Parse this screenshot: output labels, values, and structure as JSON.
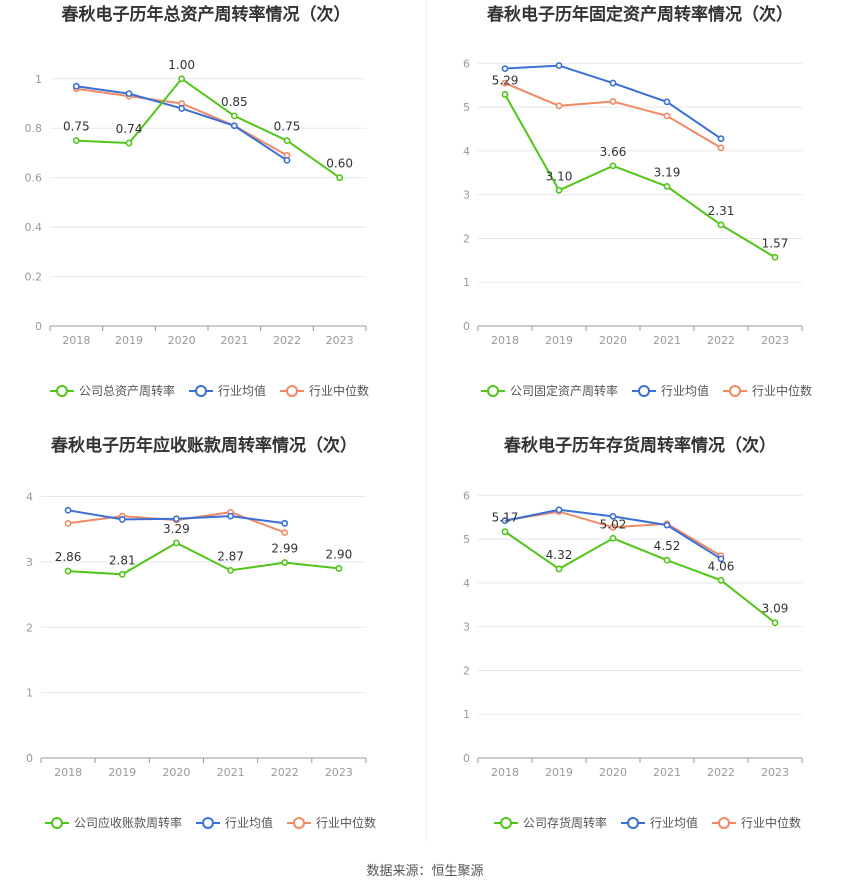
{
  "colors": {
    "company": "#52c41a",
    "avg": "#3a6fd8",
    "median": "#f08a65",
    "grid": "#e8e8ee",
    "axis": "#999999"
  },
  "footer": {
    "source": "数据来源：恒生聚源"
  },
  "chart_data": [
    {
      "type": "line",
      "title": "春秋电子历年总资产周转率情况（次）",
      "categories": [
        "2018",
        "2019",
        "2020",
        "2021",
        "2022",
        "2023"
      ],
      "y_ticks": [
        "0",
        "0.2",
        "0.4",
        "0.6",
        "0.8",
        "1"
      ],
      "ylim": [
        0,
        1.08
      ],
      "series": [
        {
          "name": "公司总资产周转率",
          "key": "company",
          "values": [
            0.75,
            0.74,
            1.0,
            0.85,
            0.75,
            0.6
          ],
          "labels": [
            "0.75",
            "0.74",
            "1.00",
            "0.85",
            "0.75",
            "0.60"
          ]
        },
        {
          "name": "行业均值",
          "key": "avg",
          "values": [
            0.97,
            0.94,
            0.88,
            0.81,
            0.67,
            null
          ]
        },
        {
          "name": "行业中位数",
          "key": "median",
          "values": [
            0.96,
            0.93,
            0.9,
            0.81,
            0.69,
            null
          ]
        }
      ]
    },
    {
      "type": "line",
      "title": "春秋电子历年固定资产周转率情况（次）",
      "categories": [
        "2018",
        "2019",
        "2020",
        "2021",
        "2022",
        "2023"
      ],
      "y_ticks": [
        "0",
        "1",
        "2",
        "3",
        "4",
        "5",
        "6"
      ],
      "ylim": [
        0,
        6.1
      ],
      "series": [
        {
          "name": "公司固定资产周转率",
          "key": "company",
          "values": [
            5.29,
            3.1,
            3.66,
            3.19,
            2.31,
            1.57
          ],
          "labels": [
            "5.29",
            "3.10",
            "3.66",
            "3.19",
            "2.31",
            "1.57"
          ]
        },
        {
          "name": "行业均值",
          "key": "avg",
          "values": [
            5.88,
            5.95,
            5.55,
            5.12,
            4.28,
            null
          ]
        },
        {
          "name": "行业中位数",
          "key": "median",
          "values": [
            5.55,
            5.03,
            5.13,
            4.8,
            4.07,
            null
          ]
        }
      ]
    },
    {
      "type": "line",
      "title": "春秋电子历年应收账款周转率情况（次）",
      "categories": [
        "2018",
        "2019",
        "2020",
        "2021",
        "2022",
        "2023"
      ],
      "y_ticks": [
        "0",
        "1",
        "2",
        "3",
        "4"
      ],
      "ylim": [
        0,
        4.1
      ],
      "series": [
        {
          "name": "公司应收账款周转率",
          "key": "company",
          "values": [
            2.86,
            2.81,
            3.29,
            2.87,
            2.99,
            2.9
          ],
          "labels": [
            "2.86",
            "2.81",
            "3.29",
            "2.87",
            "2.99",
            "2.90"
          ]
        },
        {
          "name": "行业均值",
          "key": "avg",
          "values": [
            3.79,
            3.65,
            3.66,
            3.7,
            3.59,
            null
          ]
        },
        {
          "name": "行业中位数",
          "key": "median",
          "values": [
            3.59,
            3.7,
            3.64,
            3.76,
            3.45,
            null
          ]
        }
      ]
    },
    {
      "type": "line",
      "title": "春秋电子历年存货周转率情况（次）",
      "categories": [
        "2018",
        "2019",
        "2020",
        "2021",
        "2022",
        "2023"
      ],
      "y_ticks": [
        "0",
        "1",
        "2",
        "3",
        "4",
        "5",
        "6"
      ],
      "ylim": [
        0,
        6.1
      ],
      "series": [
        {
          "name": "公司存货周转率",
          "key": "company",
          "values": [
            5.17,
            4.32,
            5.02,
            4.52,
            4.06,
            3.09
          ],
          "labels": [
            "5.17",
            "4.32",
            "5.02",
            "4.52",
            "4.06",
            "3.09"
          ]
        },
        {
          "name": "行业均值",
          "key": "avg",
          "values": [
            5.42,
            5.67,
            5.52,
            5.32,
            4.55,
            null
          ]
        },
        {
          "name": "行业中位数",
          "key": "median",
          "values": [
            5.43,
            5.63,
            5.27,
            5.35,
            4.62,
            null
          ]
        }
      ]
    }
  ]
}
